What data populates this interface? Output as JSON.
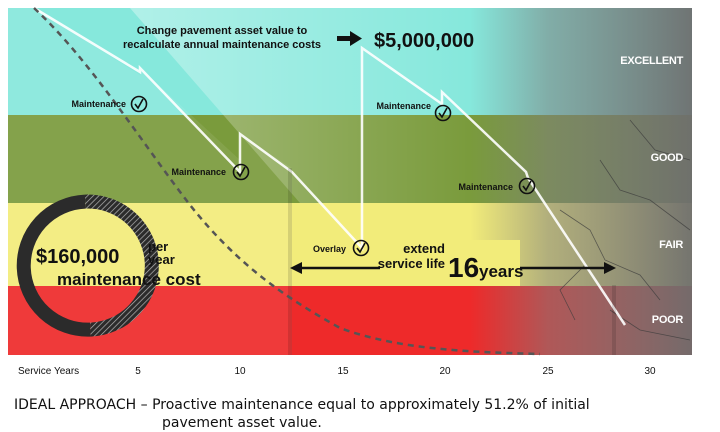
{
  "callout": {
    "text_line1": "Change pavement asset value to",
    "text_line2": "recalculate annual maintenance costs",
    "value": "$5,000,000"
  },
  "conditions": [
    "EXCELLENT",
    "GOOD",
    "FAIR",
    "POOR"
  ],
  "treatments": {
    "m1": "Maintenance",
    "m2": "Maintenance",
    "m3": "Maintenance",
    "m4": "Maintenance",
    "overlay": "Overlay"
  },
  "cost": {
    "amount": "$160,000",
    "per": "per",
    "year": "year",
    "label": "maintenance cost"
  },
  "extend": {
    "line1": "extend",
    "line2": "service life",
    "number": "16",
    "unit": "years"
  },
  "axis": {
    "label": "Service Years",
    "ticks": [
      "5",
      "10",
      "15",
      "20",
      "25",
      "30"
    ]
  },
  "caption": {
    "line1": "IDEAL APPROACH – Proactive maintenance equal to approximately 51.2% of initial",
    "line2": "pavement asset value."
  },
  "colors": {
    "excellent": "#86e8dc",
    "good": "#7a9b3c",
    "fair": "#f2ec7a",
    "poor": "#ee2a2a"
  }
}
